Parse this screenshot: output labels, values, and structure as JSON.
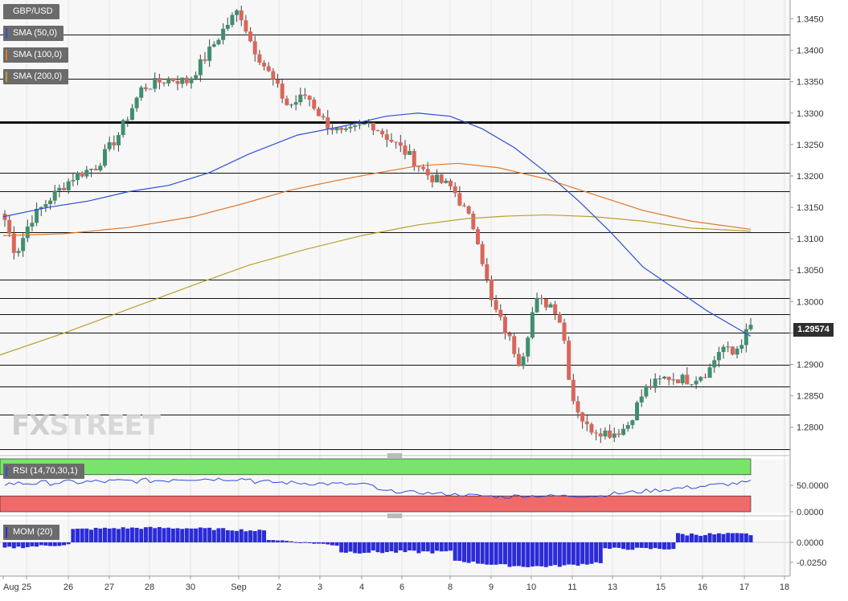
{
  "chart_data": [
    {
      "type": "candlestick",
      "title": "GBP/USD",
      "series_labels": [
        "SMA (50,0)",
        "SMA (100,0)",
        "SMA (200,0)"
      ],
      "colors": {
        "up": "#3f8f6f",
        "down": "#d9665a",
        "sma50": "#2c4fd8",
        "sma100": "#e0782a",
        "sma200": "#b8a02a"
      },
      "ylim": [
        1.276,
        1.348
      ],
      "y_ticks": [
        "1.3450",
        "1.3400",
        "1.3350",
        "1.3300",
        "1.3250",
        "1.3200",
        "1.3150",
        "1.3100",
        "1.3050",
        "1.3000",
        "1.2950",
        "1.2900",
        "1.2850",
        "1.2800"
      ],
      "x_tick_labels": [
        "Aug",
        "25",
        "26",
        "27",
        "28",
        "30",
        "Sep",
        "2",
        "3",
        "4",
        "6",
        "8",
        "9",
        "10",
        "11",
        "13",
        "15",
        "16",
        "17",
        "18"
      ],
      "current_price": "1.29574",
      "horizontal_levels": [
        1.3425,
        1.3355,
        1.3285,
        1.3205,
        1.3175,
        1.311,
        1.3035,
        1.3005,
        1.298,
        1.295,
        1.29,
        1.2865,
        1.282,
        1.2765
      ],
      "key_level": 1.3285,
      "grid": true
    },
    {
      "type": "line",
      "title": "RSI (14,70,30,1)",
      "y_ticks": [
        "50.0000",
        "0.0000"
      ],
      "zones": {
        "overbought": 70,
        "oversold": 30
      }
    },
    {
      "type": "bar",
      "title": "MOM (20)",
      "y_ticks": [
        "0.0000",
        "-0.0250"
      ]
    }
  ],
  "watermark": {
    "fx": "FX",
    "street": "STREET"
  }
}
